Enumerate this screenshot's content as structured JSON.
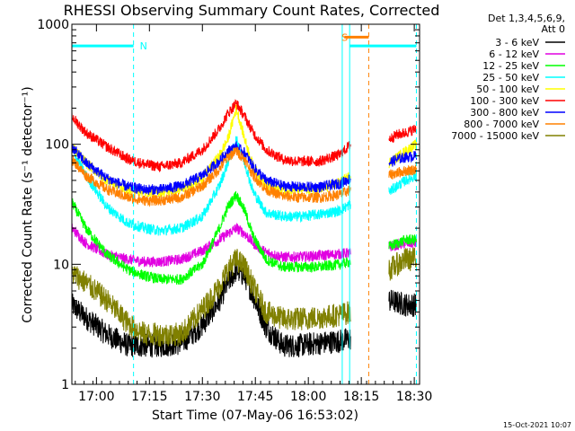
{
  "chart_data": {
    "type": "line",
    "title": "RHESSI Observing Summary Count Rates, Corrected",
    "xlabel": "Start Time (07-May-06 16:53:02)",
    "ylabel": "Corrected Count Rate (s⁻¹ detector⁻¹)",
    "yscale": "log",
    "ylim": [
      1,
      1000
    ],
    "xlim": [
      16.884,
      18.525
    ],
    "x_unit": "hours (decimal time of day)",
    "x_ticks": [
      {
        "value": 17.0,
        "label": "17:00"
      },
      {
        "value": 17.25,
        "label": "17:15"
      },
      {
        "value": 17.5,
        "label": "17:30"
      },
      {
        "value": 17.75,
        "label": "17:45"
      },
      {
        "value": 18.0,
        "label": "18:00"
      },
      {
        "value": 18.25,
        "label": "18:15"
      },
      {
        "value": 18.5,
        "label": "18:30"
      }
    ],
    "y_ticks": [
      {
        "value": 1,
        "label": "1"
      },
      {
        "value": 10,
        "label": "10"
      },
      {
        "value": 100,
        "label": "100"
      },
      {
        "value": 1000,
        "label": "1000"
      }
    ],
    "legend_header": [
      "Det 1,3,4,5,6,9,",
      "Att 0"
    ],
    "legend_position": "right outside",
    "x": [
      16.884,
      16.95,
      17.05,
      17.15,
      17.23,
      17.3,
      17.4,
      17.5,
      17.58,
      17.62,
      17.66,
      17.7,
      17.74,
      17.8,
      17.88,
      17.95,
      18.05,
      18.15,
      18.2,
      18.38,
      18.42,
      18.46,
      18.51
    ],
    "series": [
      {
        "name": "3 - 6 keV",
        "color": "#000000",
        "values": [
          4.6,
          3.6,
          2.6,
          2.1,
          2.1,
          2.1,
          2.2,
          3.1,
          5.0,
          7.0,
          9.0,
          8.0,
          5.5,
          3.0,
          2.1,
          2.1,
          2.2,
          2.3,
          2.4,
          5.0,
          4.8,
          4.6,
          4.6
        ]
      },
      {
        "name": "6 - 12 keV",
        "color": "#e100e1",
        "values": [
          20,
          15,
          12,
          11,
          10.5,
          10.5,
          11,
          13,
          16,
          18,
          20,
          18,
          15,
          12.5,
          11.5,
          11.5,
          11.8,
          12.2,
          12.4,
          14,
          14.5,
          15,
          15
        ]
      },
      {
        "name": "12 - 25 keV",
        "color": "#00ff00",
        "values": [
          33,
          20,
          12,
          9.0,
          8.0,
          7.5,
          7.5,
          10,
          20,
          30,
          38,
          28,
          17,
          11,
          9.5,
          9.5,
          9.5,
          10,
          10.5,
          14,
          15,
          16,
          16
        ]
      },
      {
        "name": "25 - 50 keV",
        "color": "#00ffff",
        "values": [
          90,
          55,
          30,
          22,
          20,
          19,
          20,
          25,
          45,
          70,
          110,
          70,
          40,
          27,
          25,
          25,
          26,
          28,
          32,
          40,
          45,
          50,
          55
        ]
      },
      {
        "name": "50 - 100 keV",
        "color": "#ffff00",
        "values": [
          95,
          70,
          50,
          42,
          40,
          40,
          42,
          52,
          80,
          110,
          200,
          110,
          65,
          45,
          42,
          42,
          42,
          48,
          55,
          70,
          78,
          88,
          100
        ]
      },
      {
        "name": "100 - 300 keV",
        "color": "#ff0000",
        "values": [
          170,
          125,
          95,
          75,
          68,
          65,
          70,
          90,
          135,
          180,
          220,
          170,
          125,
          90,
          75,
          72,
          72,
          82,
          100,
          110,
          120,
          125,
          135
        ]
      },
      {
        "name": "300 - 800 keV",
        "color": "#0000ff",
        "values": [
          95,
          70,
          52,
          44,
          42,
          42,
          45,
          55,
          72,
          88,
          95,
          85,
          65,
          50,
          45,
          44,
          44,
          47,
          52,
          70,
          75,
          78,
          80
        ]
      },
      {
        "name": "800 - 7000 keV",
        "color": "#ff8000",
        "values": [
          75,
          55,
          42,
          36,
          34,
          34,
          36,
          45,
          62,
          78,
          88,
          75,
          55,
          42,
          37,
          36,
          36,
          38,
          42,
          55,
          58,
          60,
          62
        ]
      },
      {
        "name": "7000 - 15000 keV",
        "color": "#808000",
        "values": [
          8.5,
          7.0,
          5.0,
          3.2,
          2.6,
          2.6,
          2.6,
          4.2,
          6.5,
          9.0,
          11,
          9.5,
          6.5,
          4.0,
          3.5,
          3.5,
          3.6,
          3.8,
          4.0,
          9.0,
          10,
          11,
          11
        ]
      }
    ],
    "gaps": [
      {
        "from": 18.2,
        "to": 18.38
      }
    ],
    "vertical_markers": [
      {
        "at": 16.884,
        "color": "#00ffff",
        "style": "solid"
      },
      {
        "at": 17.175,
        "color": "#00ffff",
        "style": "dashed"
      },
      {
        "at": 18.16,
        "color": "#00ffff",
        "style": "solid"
      },
      {
        "at": 18.195,
        "color": "#00ffff",
        "style": "solid"
      },
      {
        "at": 18.285,
        "color": "#ff8000",
        "style": "dashed"
      },
      {
        "at": 18.51,
        "color": "#00ffff",
        "style": "dashed"
      }
    ],
    "top_bars": [
      {
        "from": 16.884,
        "to": 17.175,
        "color": "#00ffff",
        "y": 660,
        "label": "N"
      },
      {
        "from": 18.195,
        "to": 18.51,
        "color": "#00ffff",
        "y": 660,
        "label": ""
      },
      {
        "from": 18.17,
        "to": 18.285,
        "color": "#ff8000",
        "y": 780,
        "label": "S"
      }
    ]
  },
  "footer": {
    "timestamp": "15-Oct-2021 10:07"
  }
}
